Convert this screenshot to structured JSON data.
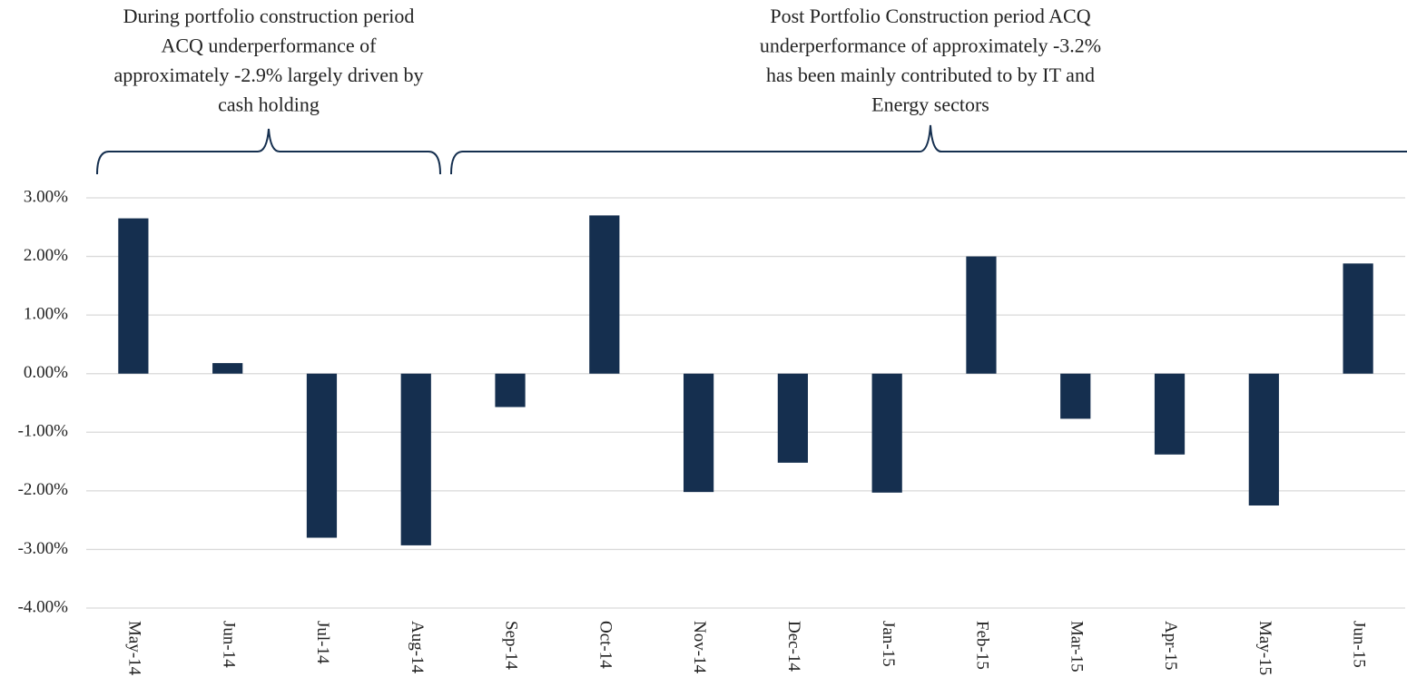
{
  "chart_data": {
    "type": "bar",
    "categories": [
      "May-14",
      "Jun-14",
      "Jul-14",
      "Aug-14",
      "Sep-14",
      "Oct-14",
      "Nov-14",
      "Dec-14",
      "Jan-15",
      "Feb-15",
      "Mar-15",
      "Apr-15",
      "May-15",
      "Jun-15"
    ],
    "values": [
      2.65,
      0.18,
      -2.8,
      -2.93,
      -0.57,
      2.7,
      -2.02,
      -1.52,
      -2.03,
      2.0,
      -0.77,
      -1.38,
      -2.25,
      1.88
    ],
    "color": "#152f4f",
    "ylim": [
      -4,
      3
    ],
    "yticks": [
      {
        "value": 3,
        "label": "3.00%"
      },
      {
        "value": 2,
        "label": "2.00%"
      },
      {
        "value": 1,
        "label": "1.00%"
      },
      {
        "value": 0,
        "label": "0.00%"
      },
      {
        "value": -1,
        "label": "-1.00%"
      },
      {
        "value": -2,
        "label": "-2.00%"
      },
      {
        "value": -3,
        "label": "-3.00%"
      },
      {
        "value": -4,
        "label": "-4.00%"
      }
    ],
    "grid": true,
    "annotations": [
      {
        "lines": [
          "During portfolio construction period",
          "ACQ underperformance of",
          "approximately -2.9% largely driven by",
          "cash holding"
        ]
      },
      {
        "lines": [
          "Post Portfolio Construction period ACQ",
          "underperformance of approximately -3.2%",
          "has been mainly contributed to by IT and",
          "Energy sectors"
        ]
      }
    ]
  }
}
